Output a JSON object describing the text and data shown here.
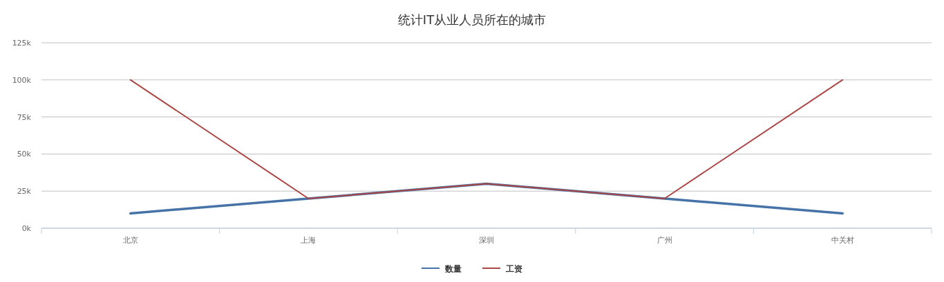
{
  "chart_data": {
    "type": "line",
    "title": "统计IT从业人员所在的城市",
    "categories": [
      "北京",
      "上海",
      "深圳",
      "广州",
      "中关村"
    ],
    "series": [
      {
        "name": "数量",
        "color": "#4572a7",
        "values": [
          10000,
          20000,
          30000,
          20000,
          10000
        ]
      },
      {
        "name": "工资",
        "color": "#aa4643",
        "values": [
          100000,
          20000,
          30000,
          20000,
          100000
        ]
      }
    ],
    "ylim": [
      0,
      125000
    ],
    "yticks": [
      {
        "value": 0,
        "label": "0k"
      },
      {
        "value": 25000,
        "label": "25k"
      },
      {
        "value": 50000,
        "label": "50k"
      },
      {
        "value": 75000,
        "label": "75k"
      },
      {
        "value": 100000,
        "label": "100k"
      },
      {
        "value": 125000,
        "label": "125k"
      }
    ],
    "grid": "y",
    "legend": "bottom",
    "marker": "none",
    "line_style": "solid"
  }
}
